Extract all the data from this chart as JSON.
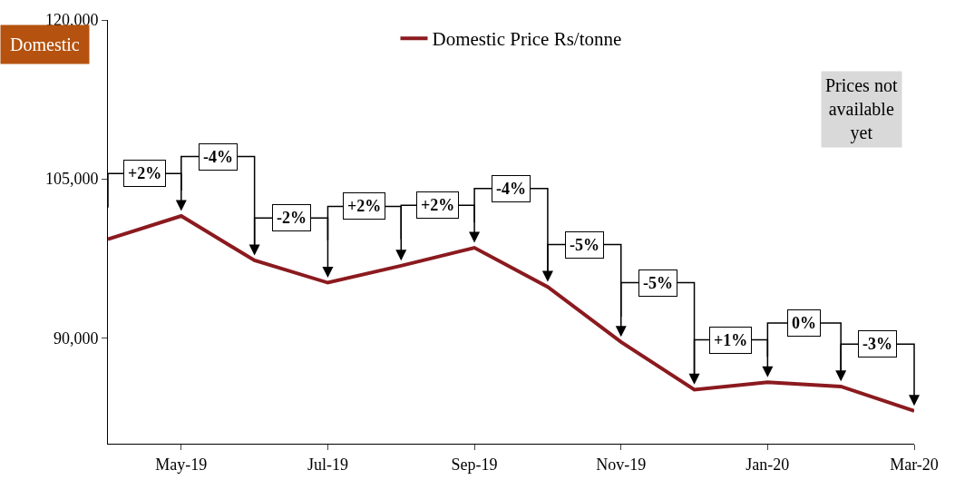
{
  "chart_data": {
    "type": "line",
    "title": "Domestic",
    "categories": [
      null,
      "May-19",
      null,
      "Jul-19",
      null,
      "Sep-19",
      null,
      "Nov-19",
      null,
      "Jan-20",
      null,
      "Mar-20"
    ],
    "series": [
      {
        "name": "Domestic Price Rs/tonne",
        "color": "#8b1a1f",
        "values": [
          99300,
          101500,
          97300,
          95200,
          96800,
          98500,
          94800,
          89600,
          85100,
          85800,
          85400,
          83100
        ]
      }
    ],
    "ylim": [
      80000,
      120000
    ],
    "yticks": [
      {
        "value": 90000,
        "label": "90,000"
      },
      {
        "value": 105000,
        "label": "105,000"
      },
      {
        "value": 120000,
        "label": "120,000"
      }
    ],
    "annotations": [
      "+2%",
      "-4%",
      "-2%",
      "+2%",
      "+2%",
      "-4%",
      "-5%",
      "-5%",
      "+1%",
      "0%",
      "-3%",
      "Prices not\navailable\nyet"
    ],
    "legend": "top",
    "grid": false,
    "marker": "none",
    "line_style": "solid"
  }
}
